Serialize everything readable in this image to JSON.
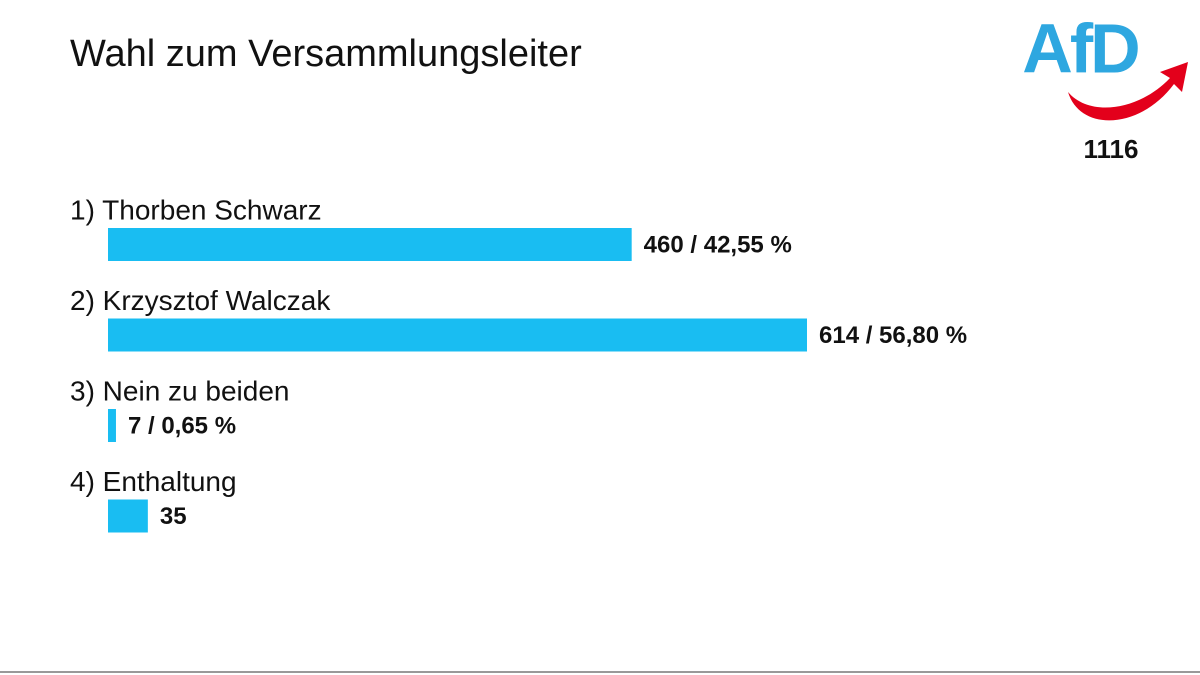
{
  "chart_data": {
    "type": "hbar",
    "title": "Wahl zum Versammlungsleiter",
    "categories": [
      "1) Thorben Schwarz",
      "2) Krzysztof Walczak",
      "3) Nein zu beiden",
      "4) Enthaltung"
    ],
    "values": [
      460,
      614,
      7,
      35
    ],
    "value_labels": [
      "460 / 42,55 %",
      "614 / 56,80 %",
      "7 / 0,65 %",
      "35"
    ],
    "color": "#19bdf2"
  },
  "logo": {
    "text": "AfD",
    "number": 1116
  }
}
